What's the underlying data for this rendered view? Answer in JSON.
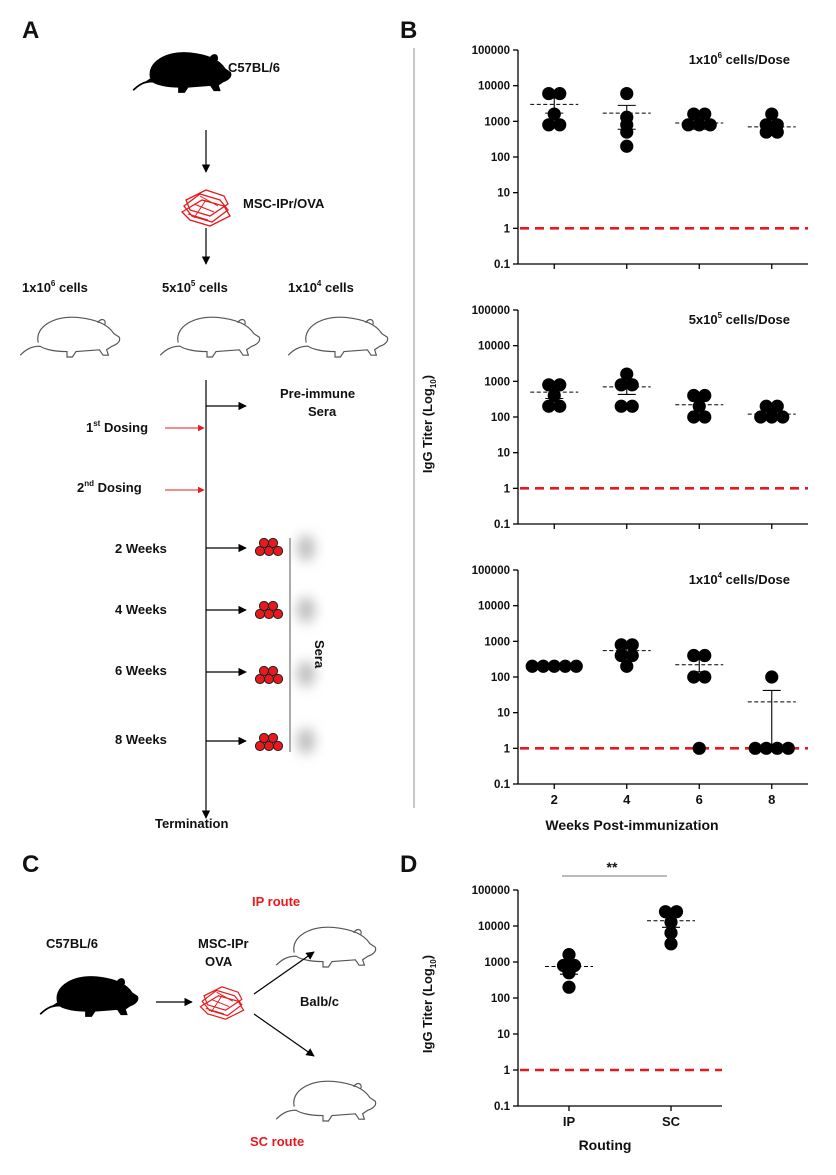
{
  "colors": {
    "accent": "#e8191c",
    "ink": "#000000",
    "shade": "#bdbdbd"
  },
  "panel_a": {
    "letter": "A",
    "strain": "C57BL/6",
    "construct": "MSC-IPr/OVA",
    "dose_high": {
      "base": "1x10",
      "exp": "6",
      "unit": " cells"
    },
    "dose_mid": {
      "base": "5x10",
      "exp": "5",
      "unit": " cells"
    },
    "dose_low": {
      "base": "1x10",
      "exp": "4",
      "unit": " cells"
    },
    "preimmune": [
      "Pre-immune",
      "Sera"
    ],
    "dose1": {
      "num": "1",
      "sup": "st",
      "word": " Dosing"
    },
    "dose2": {
      "num": "2",
      "sup": "nd",
      "word": " Dosing"
    },
    "weeks": [
      "2 Weeks",
      "4 Weeks",
      "6 Weeks",
      "8 Weeks"
    ],
    "sera": "Sera",
    "termination": "Termination"
  },
  "panel_b": {
    "letter": "B",
    "ylabel_main": "IgG Titer (Log",
    "ylabel_sub": "10",
    "ylabel_end": ")",
    "xlabel": "Weeks Post-immunization"
  },
  "panel_c": {
    "letter": "C",
    "strain": "C57BL/6",
    "construct_1": "MSC-IPr",
    "construct_2": "OVA",
    "ip_route": "IP route",
    "sc_route": "SC route",
    "recipient": "Balb/c"
  },
  "panel_d": {
    "letter": "D",
    "ylabel_main": "IgG Titer (Log",
    "ylabel_sub": "10",
    "ylabel_end": ")",
    "xlabel": "Routing",
    "significance": "**"
  },
  "chart_data": [
    {
      "type": "scatter",
      "title": "1x10^6 cells/Dose",
      "title_base": "1x10",
      "title_exp": "6",
      "title_rest": " cells/Dose",
      "scale": "log",
      "ylim": [
        0.1,
        100000
      ],
      "yticks": [
        "100000",
        "10000",
        "1000",
        "100",
        "10",
        "1",
        "0.1"
      ],
      "categories": [
        "2",
        "4",
        "6",
        "8"
      ],
      "points": [
        [
          6000,
          6000,
          1600,
          800,
          800
        ],
        [
          6000,
          1300,
          800,
          500,
          200
        ],
        [
          1600,
          1600,
          800,
          800,
          800
        ],
        [
          1600,
          800,
          800,
          500,
          500
        ]
      ],
      "means": [
        3000,
        1700,
        900,
        700
      ],
      "sem_hi": [
        4500,
        2800,
        1200,
        950
      ],
      "sem_lo": [
        1700,
        600,
        600,
        480
      ],
      "cutoff": 1
    },
    {
      "type": "scatter",
      "title": "5x10^5 cells/Dose",
      "title_base": "5x10",
      "title_exp": "5",
      "title_rest": " cells/Dose",
      "scale": "log",
      "ylim": [
        0.1,
        100000
      ],
      "yticks": [
        "100000",
        "10000",
        "1000",
        "100",
        "10",
        "1",
        "0.1"
      ],
      "categories": [
        "2",
        "4",
        "6",
        "8"
      ],
      "points": [
        [
          800,
          800,
          400,
          200,
          200
        ],
        [
          1600,
          800,
          800,
          200,
          200
        ],
        [
          400,
          400,
          200,
          100,
          100
        ],
        [
          200,
          200,
          100,
          100,
          100
        ]
      ],
      "means": [
        500,
        700,
        220,
        120
      ],
      "sem_hi": [
        700,
        1000,
        330,
        160
      ],
      "sem_lo": [
        330,
        430,
        140,
        100
      ],
      "cutoff": 1
    },
    {
      "type": "scatter",
      "title": "1x10^4 cells/Dose",
      "title_base": "1x10",
      "title_exp": "4",
      "title_rest": " cells/Dose",
      "scale": "log",
      "ylim": [
        0.1,
        100000
      ],
      "yticks": [
        "100000",
        "10000",
        "1000",
        "100",
        "10",
        "1",
        "0.1"
      ],
      "categories": [
        "2",
        "4",
        "6",
        "8"
      ],
      "points": [
        [
          200,
          200,
          200,
          200,
          200
        ],
        [
          800,
          800,
          400,
          400,
          200
        ],
        [
          400,
          400,
          100,
          100,
          1
        ],
        [
          100,
          1,
          1,
          1,
          1
        ]
      ],
      "means": [
        200,
        550,
        220,
        20
      ],
      "sem_hi": [
        200,
        750,
        340,
        42
      ],
      "sem_lo": [
        200,
        350,
        140,
        1
      ],
      "cutoff": 1
    },
    {
      "type": "scatter",
      "title": "",
      "scale": "log",
      "ylim": [
        0.1,
        100000
      ],
      "yticks": [
        "100000",
        "10000",
        "1000",
        "100",
        "10",
        "1",
        "0.1"
      ],
      "categories": [
        "IP",
        "SC"
      ],
      "points": [
        [
          1600,
          800,
          800,
          500,
          200
        ],
        [
          25000,
          25000,
          12800,
          6400,
          3200
        ]
      ],
      "means": [
        750,
        14000
      ],
      "sem_hi": [
        1050,
        19000
      ],
      "sem_lo": [
        460,
        9200
      ],
      "cutoff": 1
    }
  ]
}
